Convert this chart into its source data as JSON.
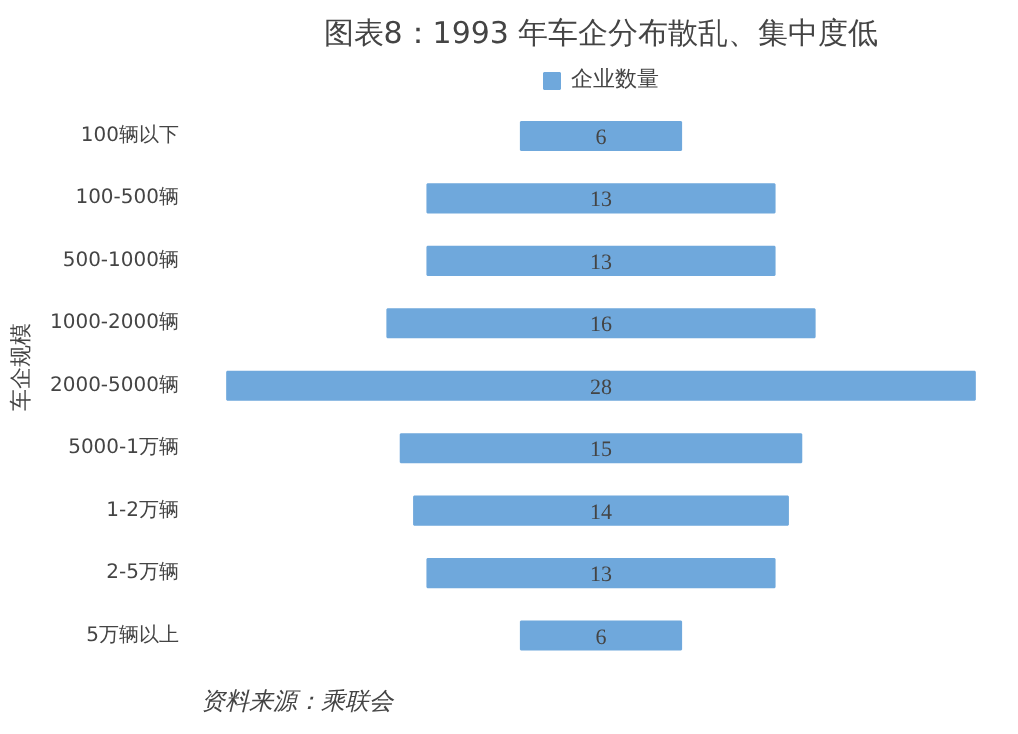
{
  "chart_data": {
    "type": "other",
    "title": "图表8：1993 年车企分布散乱、集中度低",
    "ylabel": "车企规模",
    "categories": [
      "100辆以下",
      "100-500辆",
      "500-1000辆",
      "1000-2000辆",
      "2000-5000辆",
      "5000-1万辆",
      "1-2万辆",
      "2-5万辆",
      "5万辆以上"
    ],
    "series": [
      {
        "name": "企业数量",
        "color": "#6fa8dc",
        "values": [
          6,
          13,
          13,
          16,
          28,
          15,
          14,
          13,
          6
        ]
      }
    ],
    "data_labels": true,
    "legend": "top",
    "annotations": [
      "资料来源：乘联会"
    ]
  }
}
